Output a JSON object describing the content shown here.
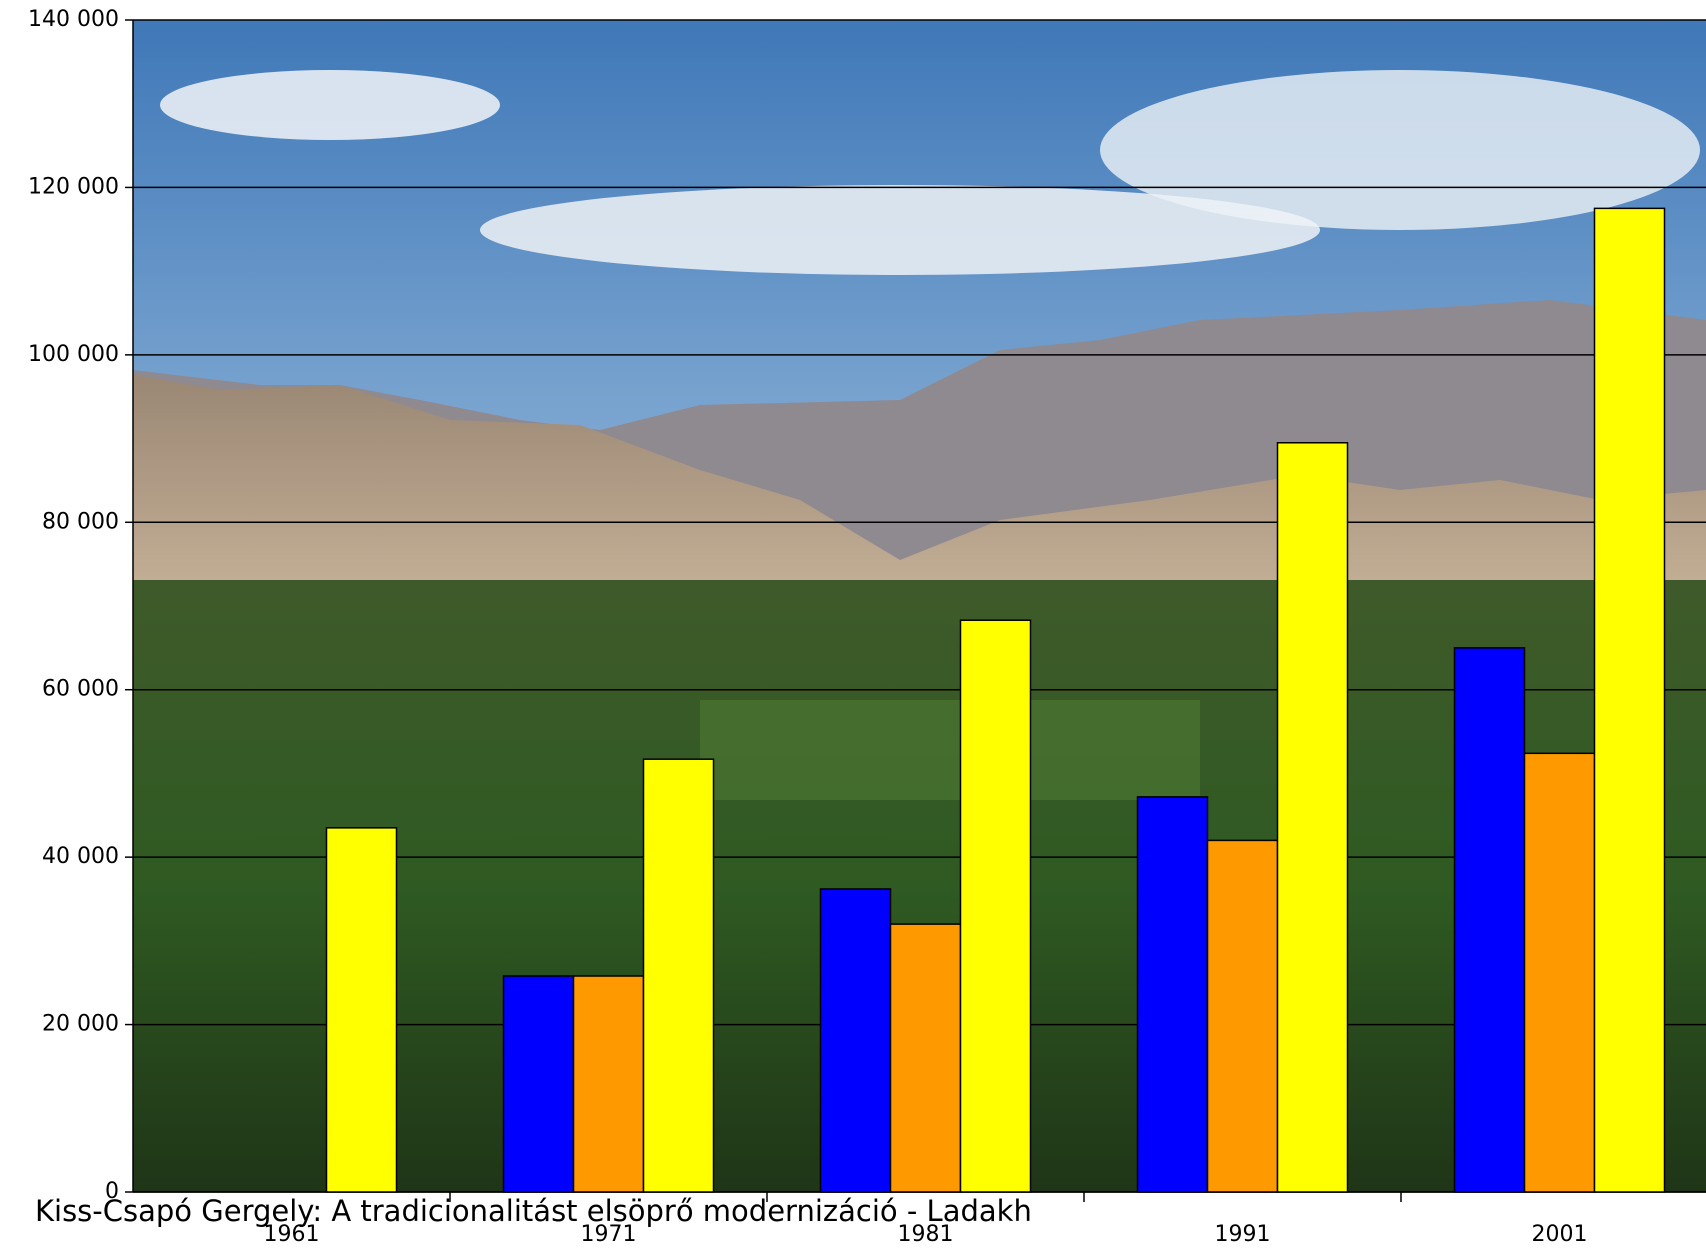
{
  "chart_data": {
    "type": "bar",
    "categories": [
      "1961",
      "1971",
      "1981",
      "1991",
      "2001"
    ],
    "series": [
      {
        "color": "#0000ff",
        "values": [
          null,
          25800,
          36200,
          47200,
          65000
        ]
      },
      {
        "color": "#ff9900",
        "values": [
          null,
          25800,
          32000,
          42000,
          52400
        ]
      },
      {
        "color": "#ffff00",
        "values": [
          43500,
          51700,
          68300,
          89500,
          117500
        ]
      }
    ],
    "ylim": [
      0,
      140000
    ],
    "yticks": [
      0,
      {
        "value": 20000,
        "label": "20 000"
      },
      {
        "value": 40000,
        "label": "40 000"
      },
      {
        "value": 60000,
        "label": "60 000"
      },
      {
        "value": 80000,
        "label": "80 000"
      },
      {
        "value": 100000,
        "label": "100 000"
      },
      {
        "value": 120000,
        "label": "120 000"
      },
      {
        "value": 140000,
        "label": "140 000"
      }
    ],
    "grid": true,
    "caption": "Kiss-Csapó Gergely: A tradicionalitást elsöprő modernizáció - Ladakh"
  }
}
